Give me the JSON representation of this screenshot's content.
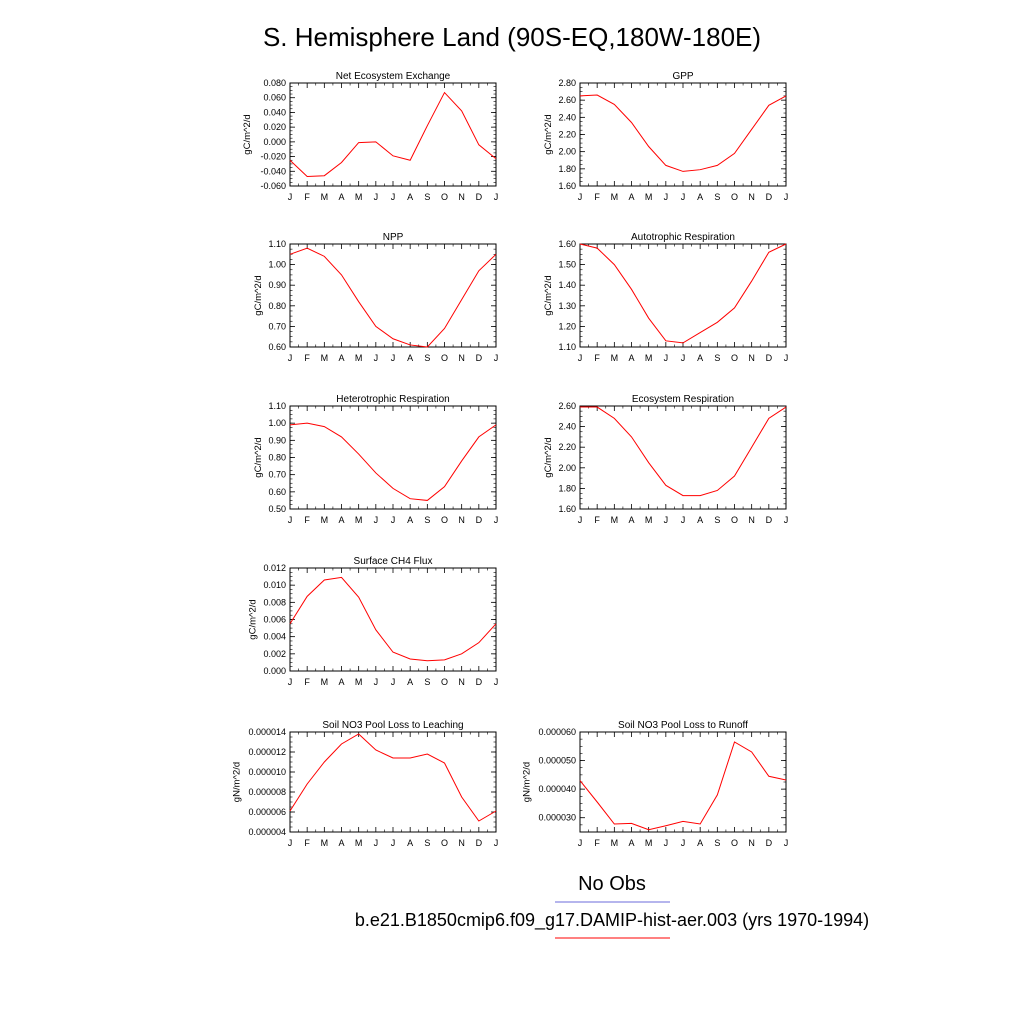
{
  "page": {
    "title": "S. Hemisphere Land (90S-EQ,180W-180E)"
  },
  "legend": {
    "obs_label": "No Obs",
    "obs_color": "#6b6bdb",
    "model_label": "b.e21.B1850cmip6.f09_g17.DAMIP-hist-aer.003 (yrs 1970-1994)",
    "model_color": "#ff0000"
  },
  "chart_data": [
    {
      "type": "line",
      "title": "Net Ecosystem Exchange",
      "ylabel": "gC/m^2/d",
      "categories": [
        "J",
        "F",
        "M",
        "A",
        "M",
        "J",
        "J",
        "A",
        "S",
        "O",
        "N",
        "D",
        "J"
      ],
      "yticks": [
        "-0.060",
        "-0.040",
        "-0.020",
        "0.000",
        "0.020",
        "0.040",
        "0.060",
        "0.080"
      ],
      "ylim": [
        -0.06,
        0.08
      ],
      "series": [
        {
          "values": [
            -0.025,
            -0.047,
            -0.046,
            -0.028,
            -0.001,
            0.0,
            -0.019,
            -0.025,
            0.022,
            0.067,
            0.042,
            -0.004,
            -0.023
          ]
        }
      ]
    },
    {
      "type": "line",
      "title": "GPP",
      "ylabel": "gC/m^2/d",
      "categories": [
        "J",
        "F",
        "M",
        "A",
        "M",
        "J",
        "J",
        "A",
        "S",
        "O",
        "N",
        "D",
        "J"
      ],
      "yticks": [
        "1.60",
        "1.80",
        "2.00",
        "2.20",
        "2.40",
        "2.60",
        "2.80"
      ],
      "ylim": [
        1.6,
        2.8
      ],
      "series": [
        {
          "values": [
            2.65,
            2.66,
            2.55,
            2.34,
            2.06,
            1.84,
            1.77,
            1.79,
            1.84,
            1.98,
            2.26,
            2.54,
            2.65
          ]
        }
      ]
    },
    {
      "type": "line",
      "title": "NPP",
      "ylabel": "gC/m^2/d",
      "categories": [
        "J",
        "F",
        "M",
        "A",
        "M",
        "J",
        "J",
        "A",
        "S",
        "O",
        "N",
        "D",
        "J"
      ],
      "yticks": [
        "0.60",
        "0.70",
        "0.80",
        "0.90",
        "1.00",
        "1.10"
      ],
      "ylim": [
        0.6,
        1.1
      ],
      "series": [
        {
          "values": [
            1.05,
            1.08,
            1.04,
            0.95,
            0.82,
            0.7,
            0.64,
            0.61,
            0.6,
            0.69,
            0.83,
            0.97,
            1.05
          ]
        }
      ]
    },
    {
      "type": "line",
      "title": "Autotrophic Respiration",
      "ylabel": "gC/m^2/d",
      "categories": [
        "J",
        "F",
        "M",
        "A",
        "M",
        "J",
        "J",
        "A",
        "S",
        "O",
        "N",
        "D",
        "J"
      ],
      "yticks": [
        "1.10",
        "1.20",
        "1.30",
        "1.40",
        "1.50",
        "1.60"
      ],
      "ylim": [
        1.1,
        1.6
      ],
      "series": [
        {
          "values": [
            1.6,
            1.58,
            1.5,
            1.38,
            1.24,
            1.13,
            1.12,
            1.17,
            1.22,
            1.29,
            1.42,
            1.56,
            1.6
          ]
        }
      ]
    },
    {
      "type": "line",
      "title": "Heterotrophic Respiration",
      "ylabel": "gC/m^2/d",
      "categories": [
        "J",
        "F",
        "M",
        "A",
        "M",
        "J",
        "J",
        "A",
        "S",
        "O",
        "N",
        "D",
        "J"
      ],
      "yticks": [
        "0.50",
        "0.60",
        "0.70",
        "0.80",
        "0.90",
        "1.00",
        "1.10"
      ],
      "ylim": [
        0.5,
        1.1
      ],
      "series": [
        {
          "values": [
            0.99,
            1.0,
            0.98,
            0.92,
            0.82,
            0.71,
            0.62,
            0.56,
            0.55,
            0.63,
            0.78,
            0.92,
            0.99
          ]
        }
      ]
    },
    {
      "type": "line",
      "title": "Ecosystem Respiration",
      "ylabel": "gC/m^2/d",
      "categories": [
        "J",
        "F",
        "M",
        "A",
        "M",
        "J",
        "J",
        "A",
        "S",
        "O",
        "N",
        "D",
        "J"
      ],
      "yticks": [
        "1.60",
        "1.80",
        "2.00",
        "2.20",
        "2.40",
        "2.60"
      ],
      "ylim": [
        1.6,
        2.6
      ],
      "series": [
        {
          "values": [
            2.59,
            2.59,
            2.48,
            2.3,
            2.05,
            1.83,
            1.73,
            1.73,
            1.78,
            1.92,
            2.2,
            2.48,
            2.59
          ]
        }
      ]
    },
    {
      "type": "line",
      "title": "Surface CH4 Flux",
      "ylabel": "gC/m^2/d",
      "categories": [
        "J",
        "F",
        "M",
        "A",
        "M",
        "J",
        "J",
        "A",
        "S",
        "O",
        "N",
        "D",
        "J"
      ],
      "yticks": [
        "0.000",
        "0.002",
        "0.004",
        "0.006",
        "0.008",
        "0.010",
        "0.012"
      ],
      "ylim": [
        0,
        0.012
      ],
      "series": [
        {
          "values": [
            0.0055,
            0.0087,
            0.0106,
            0.0109,
            0.0086,
            0.0048,
            0.0022,
            0.0014,
            0.0012,
            0.0013,
            0.002,
            0.0033,
            0.0055
          ]
        }
      ]
    },
    {
      "type": "line",
      "title": "Soil NO3 Pool Loss to Leaching",
      "ylabel": "gN/m^2/d",
      "categories": [
        "J",
        "F",
        "M",
        "A",
        "M",
        "J",
        "J",
        "A",
        "S",
        "O",
        "N",
        "D",
        "J"
      ],
      "yticks": [
        "0.000004",
        "0.000006",
        "0.000008",
        "0.000010",
        "0.000012",
        "0.000014"
      ],
      "ylim": [
        4e-06,
        1.4e-05
      ],
      "series": [
        {
          "values": [
            6.1e-06,
            8.8e-06,
            1.1e-05,
            1.28e-05,
            1.38e-05,
            1.22e-05,
            1.14e-05,
            1.14e-05,
            1.18e-05,
            1.09e-05,
            7.5e-06,
            5.1e-06,
            6.1e-06
          ]
        }
      ]
    },
    {
      "type": "line",
      "title": "Soil NO3 Pool Loss to Runoff",
      "ylabel": "gN/m^2/d",
      "categories": [
        "J",
        "F",
        "M",
        "A",
        "M",
        "J",
        "J",
        "A",
        "S",
        "O",
        "N",
        "D",
        "J"
      ],
      "yticks": [
        "0.000030",
        "0.000040",
        "0.000050",
        "0.000060"
      ],
      "ylim": [
        2.5e-05,
        6e-05
      ],
      "series": [
        {
          "values": [
            4.3e-05,
            3.55e-05,
            2.78e-05,
            2.8e-05,
            2.58e-05,
            2.72e-05,
            2.87e-05,
            2.78e-05,
            3.8e-05,
            5.65e-05,
            5.3e-05,
            4.45e-05,
            4.32e-05
          ]
        }
      ]
    }
  ]
}
